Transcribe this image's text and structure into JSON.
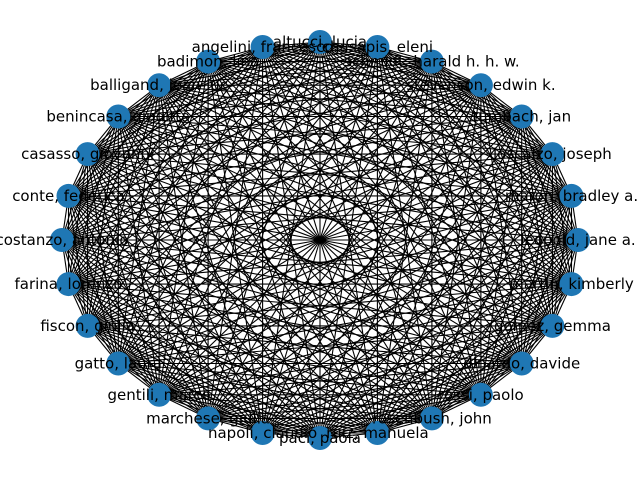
{
  "graph": {
    "node_color": "#1f77b4",
    "edge_color": "#000000",
    "nodes": [
      {
        "label": "altucci, lucia"
      },
      {
        "label": "chasapis, eleni"
      },
      {
        "label": "schmidt, harald h. h. w."
      },
      {
        "label": "stevenson, edwin k."
      },
      {
        "label": "tumbach, jan"
      },
      {
        "label": "loscalzo, joseph"
      },
      {
        "label": "maron, bradley a."
      },
      {
        "label": "leopold, jane a."
      },
      {
        "label": "martin, kimberly"
      },
      {
        "label": "gomez, gemma"
      },
      {
        "label": "dinardo, davide"
      },
      {
        "label": "rossi, paolo"
      },
      {
        "label": "rosenbush, john"
      },
      {
        "label": "ruiz, manuela"
      },
      {
        "label": "paci, paola"
      },
      {
        "label": "napoli, claudio"
      },
      {
        "label": "marchese, giulia"
      },
      {
        "label": "gentili, marco"
      },
      {
        "label": "gatto, laura"
      },
      {
        "label": "fiscon, giulia"
      },
      {
        "label": "farina, lorenzo"
      },
      {
        "label": "costanzo, antonio"
      },
      {
        "label": "conte, federica"
      },
      {
        "label": "casasso, giovanni"
      },
      {
        "label": "benincasa, giuditta"
      },
      {
        "label": "balligand, jean-luc"
      },
      {
        "label": "badimon, lina"
      },
      {
        "label": "angelini, francesco"
      }
    ]
  }
}
